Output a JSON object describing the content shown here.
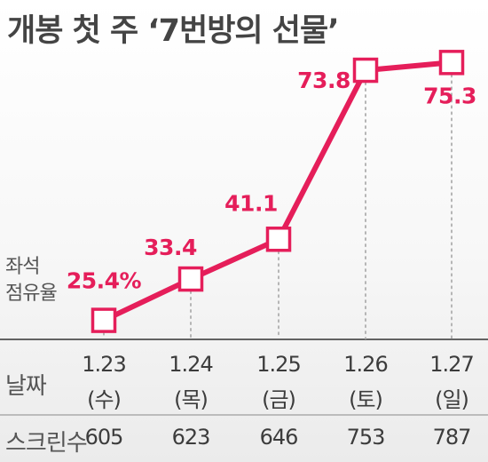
{
  "title": "개봉 첫 주 ‘7번방의 선물’",
  "colors": {
    "series": "#e51e5a",
    "text": "#444444",
    "grid": "#b5b5b5"
  },
  "chart_data": {
    "type": "line",
    "title": "개봉 첫 주 ‘7번방의 선물’",
    "ylabel": "좌석 점유율",
    "ylabel_lines": [
      "좌석",
      "점유율"
    ],
    "categories": [
      "1.23 (수)",
      "1.24 (목)",
      "1.25 (금)",
      "1.26 (토)",
      "1.27 (일)"
    ],
    "series": [
      {
        "name": "좌석 점유율",
        "values": [
          25.4,
          33.4,
          41.1,
          73.8,
          75.3
        ]
      }
    ],
    "data_labels": [
      "25.4%",
      "33.4",
      "41.1",
      "73.8",
      "75.3"
    ],
    "ylim": [
      20,
      80
    ],
    "grid": false,
    "table": {
      "date_label": "날짜",
      "dates": [
        "1.23",
        "1.24",
        "1.25",
        "1.26",
        "1.27"
      ],
      "weekdays": [
        "(수)",
        "(목)",
        "(금)",
        "(토)",
        "(일)"
      ],
      "screens_label": "스크린수",
      "screens": [
        605,
        623,
        646,
        753,
        787
      ]
    }
  }
}
